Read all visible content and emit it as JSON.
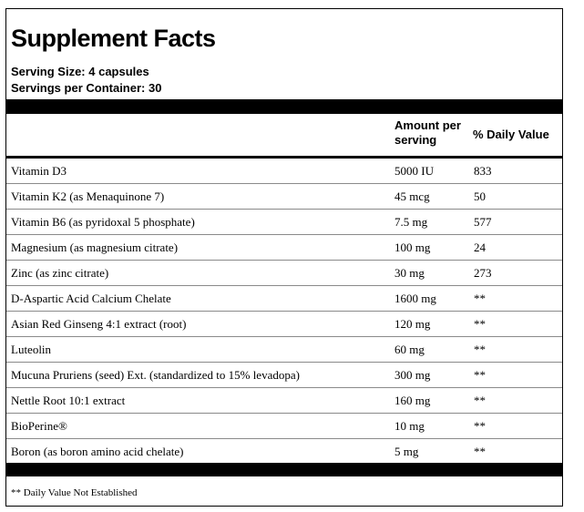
{
  "title": "Supplement Facts",
  "serving_size": "Serving Size: 4 capsules",
  "servings_per_container": "Servings per Container: 30",
  "columns": {
    "amount": "Amount per serving",
    "daily_value": "% Daily Value"
  },
  "rows": [
    {
      "name": "Vitamin D3",
      "amount": "5000 IU",
      "dv": "833"
    },
    {
      "name": "Vitamin K2 (as Menaquinone 7)",
      "amount": "45 mcg",
      "dv": "50"
    },
    {
      "name": "Vitamin B6 (as pyridoxal 5 phosphate)",
      "amount": "7.5 mg",
      "dv": "577"
    },
    {
      "name": "Magnesium (as magnesium citrate)",
      "amount": "100 mg",
      "dv": "24"
    },
    {
      "name": "Zinc (as zinc citrate)",
      "amount": "30 mg",
      "dv": "273"
    },
    {
      "name": "D-Aspartic Acid Calcium Chelate",
      "amount": "1600 mg",
      "dv": "**"
    },
    {
      "name": "Asian Red Ginseng 4:1 extract (root)",
      "amount": "120 mg",
      "dv": "**"
    },
    {
      "name": "Luteolin",
      "amount": "60 mg",
      "dv": "**"
    },
    {
      "name": "Mucuna Pruriens (seed) Ext. (standardized to 15% levadopa)",
      "amount": "300 mg",
      "dv": "**"
    },
    {
      "name": "Nettle Root 10:1 extract",
      "amount": "160 mg",
      "dv": "**"
    },
    {
      "name": "BioPerine®",
      "amount": "10 mg",
      "dv": "**"
    },
    {
      "name": "Boron (as boron amino acid chelate)",
      "amount": "5 mg",
      "dv": "**"
    }
  ],
  "footnote": "** Daily Value Not Established"
}
